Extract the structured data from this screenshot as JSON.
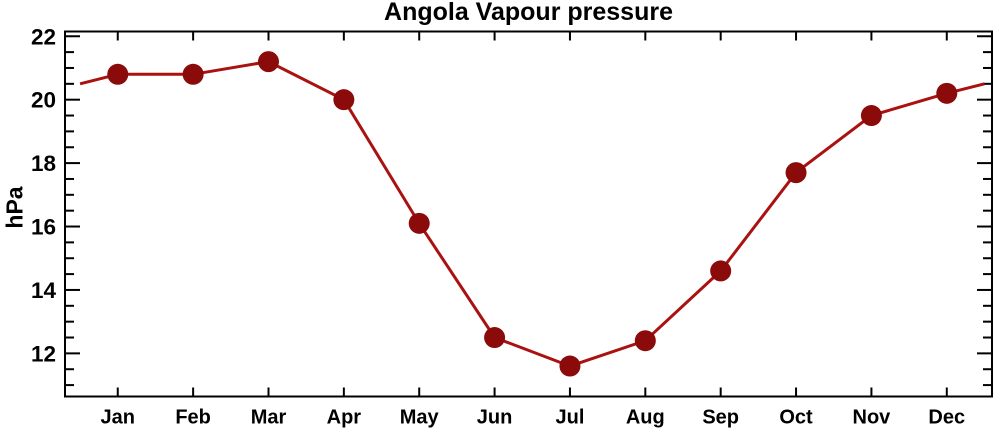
{
  "chart_data": {
    "type": "line",
    "title": "Angola Vapour pressure",
    "ylabel": "hPa",
    "categories": [
      "Jan",
      "Feb",
      "Mar",
      "Apr",
      "May",
      "Jun",
      "Jul",
      "Aug",
      "Sep",
      "Oct",
      "Nov",
      "Dec"
    ],
    "values": [
      20.8,
      20.8,
      21.2,
      20.0,
      16.1,
      12.5,
      11.6,
      12.4,
      14.6,
      17.7,
      19.5,
      20.2
    ],
    "wrap_extension": {
      "start_x": 0.5,
      "start_value": 20.5,
      "end_x": 12.5,
      "end_value": 20.5
    },
    "xlim": [
      0.3,
      12.6
    ],
    "ylim": [
      10.64,
      22.15
    ],
    "yticks_major": [
      12,
      14,
      16,
      18,
      20,
      22
    ],
    "ytick_minor_step": 0.5,
    "grid": false,
    "legend": false,
    "marker": "filled-circle",
    "line_color": "#aa1111",
    "marker_color": "#8b0a0a",
    "axis_color": "#000000",
    "background_color": "#ffffff"
  }
}
